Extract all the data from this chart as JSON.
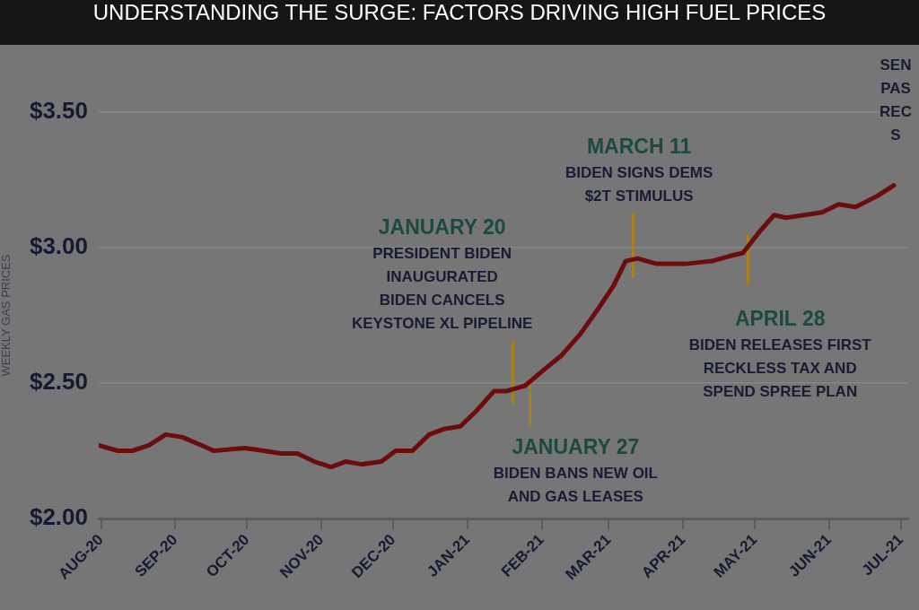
{
  "chart_data": {
    "type": "line",
    "title": "UNDERSTANDING THE SURGE: FACTORS DRIVING HIGH FUEL PRICES",
    "ylabel": "WEEKLY GAS PRICES",
    "x": [
      "2020-07-31",
      "2020-08-08",
      "2020-08-14",
      "2020-08-21",
      "2020-08-28",
      "2020-09-04",
      "2020-09-12",
      "2020-09-17",
      "2020-09-30",
      "2020-10-08",
      "2020-10-15",
      "2020-10-22",
      "2020-10-29",
      "2020-11-05",
      "2020-11-11",
      "2020-11-18",
      "2020-11-26",
      "2020-12-02",
      "2020-12-09",
      "2020-12-16",
      "2020-12-22",
      "2020-12-29",
      "2021-01-05",
      "2021-01-12",
      "2021-01-17",
      "2021-01-25",
      "2021-02-02",
      "2021-02-09",
      "2021-02-17",
      "2021-02-25",
      "2021-03-03",
      "2021-03-08",
      "2021-03-13",
      "2021-03-21",
      "2021-04-02",
      "2021-04-13",
      "2021-04-21",
      "2021-04-26",
      "2021-05-03",
      "2021-05-09",
      "2021-05-14",
      "2021-05-29",
      "2021-06-05",
      "2021-06-12",
      "2021-06-21",
      "2021-06-28"
    ],
    "series": [
      {
        "color": "#6b0d0d",
        "values": [
          2.27,
          2.25,
          2.25,
          2.27,
          2.31,
          2.3,
          2.27,
          2.25,
          2.26,
          2.25,
          2.24,
          2.24,
          2.21,
          2.19,
          2.21,
          2.2,
          2.21,
          2.25,
          2.25,
          2.31,
          2.33,
          2.34,
          2.4,
          2.47,
          2.47,
          2.49,
          2.55,
          2.6,
          2.68,
          2.78,
          2.86,
          2.95,
          2.96,
          2.94,
          2.94,
          2.95,
          2.97,
          2.98,
          3.06,
          3.12,
          3.11,
          3.13,
          3.16,
          3.15,
          3.19,
          3.23
        ]
      }
    ],
    "xlim": [
      "2020-07-31",
      "2021-07-04"
    ],
    "xticks": [
      {
        "value": "2020-08-01",
        "label": "AUG-20"
      },
      {
        "value": "2020-09-01",
        "label": "SEP-20"
      },
      {
        "value": "2020-10-01",
        "label": "OCT-20"
      },
      {
        "value": "2020-11-01",
        "label": "NOV-20"
      },
      {
        "value": "2020-12-01",
        "label": "DEC-20"
      },
      {
        "value": "2021-01-01",
        "label": "JAN-21"
      },
      {
        "value": "2021-02-01",
        "label": "FEB-21"
      },
      {
        "value": "2021-03-01",
        "label": "MAR-21"
      },
      {
        "value": "2021-04-01",
        "label": "APR-21"
      },
      {
        "value": "2021-05-01",
        "label": "MAY-21"
      },
      {
        "value": "2021-06-01",
        "label": "JUN-21"
      },
      {
        "value": "2021-07-01",
        "label": "JUL-21"
      }
    ],
    "ylim": [
      2.0,
      3.5
    ],
    "yticks": [
      {
        "value": 2.0,
        "label": "$2.00"
      },
      {
        "value": 2.5,
        "label": "$2.50"
      },
      {
        "value": 3.0,
        "label": "$3.00"
      },
      {
        "value": 3.5,
        "label": "$3.50"
      }
    ],
    "grid": "y",
    "annotations": [
      {
        "text": "JANUARY 20\nPRESIDENT BIDEN\nINAUGURATED\nBIDEN CANCELS\nKEYSTONE XL PIPELINE",
        "x": "2021-01-20",
        "y": 2.47
      },
      {
        "text": "JANUARY 27\nBIDEN BANS NEW OIL\nAND GAS LEASES",
        "x": "2021-01-27",
        "y": 2.49
      },
      {
        "text": "MARCH 11\nBIDEN SIGNS DEMS\n$2T STIMULUS",
        "x": "2021-03-11",
        "y": 2.96
      },
      {
        "text": "APRIL 28\nBIDEN RELEASES FIRST\nRECKLESS TAX AND\nSPEND SPREE PLAN",
        "x": "2021-04-28",
        "y": 3.0
      },
      "SEN\nPAS\nREC\nS"
    ]
  }
}
